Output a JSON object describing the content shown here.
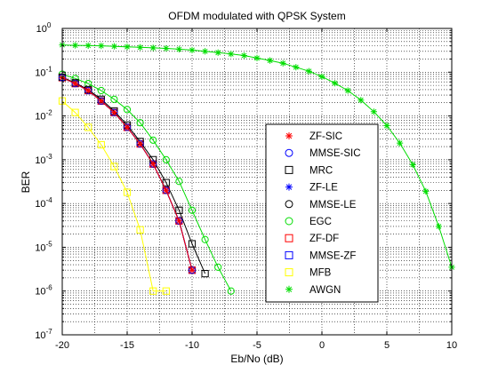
{
  "chart_data": {
    "type": "line",
    "title": "OFDM modulated with QPSK System",
    "xlabel": "Eb/No (dB)",
    "ylabel": "BER",
    "xlim": [
      -20,
      10
    ],
    "ylim": [
      1e-07,
      1
    ],
    "yscale": "log",
    "grid": true,
    "legend_position": "center-right",
    "xticks": [
      -20,
      -15,
      -10,
      -5,
      0,
      5,
      10
    ],
    "xtick_labels": [
      "-20",
      "-15",
      "-10",
      "-5",
      "0",
      "5",
      "10"
    ],
    "yticks_exp": [
      0,
      -1,
      -2,
      -3,
      -4,
      -5,
      -6,
      -7
    ],
    "ytick_base": "10",
    "series": [
      {
        "name": "ZF-SIC",
        "marker": "star",
        "color": "#ff0000",
        "x": [
          -20,
          -19,
          -18,
          -17,
          -16,
          -15,
          -14,
          -13,
          -12,
          -11,
          -10
        ],
        "y": [
          0.075,
          0.055,
          0.038,
          0.022,
          0.012,
          0.0055,
          0.0023,
          0.0008,
          0.0002,
          4e-05,
          3e-06
        ]
      },
      {
        "name": "MMSE-SIC",
        "marker": "circle",
        "color": "#0000ff",
        "x": [
          -20,
          -19,
          -18,
          -17,
          -16,
          -15,
          -14,
          -13,
          -12,
          -11,
          -10
        ],
        "y": [
          0.075,
          0.055,
          0.038,
          0.022,
          0.012,
          0.0055,
          0.0023,
          0.0008,
          0.0002,
          4e-05,
          3e-06
        ]
      },
      {
        "name": "MRC",
        "marker": "square",
        "color": "#000000",
        "x": [
          -20,
          -19,
          -18,
          -17,
          -16,
          -15,
          -14,
          -13,
          -12,
          -11,
          -10,
          -9
        ],
        "y": [
          0.077,
          0.057,
          0.04,
          0.024,
          0.013,
          0.0062,
          0.0026,
          0.001,
          0.0003,
          7e-05,
          1.2e-05,
          2.5e-06
        ]
      },
      {
        "name": "ZF-LE",
        "marker": "star",
        "color": "#0000ff",
        "x": [
          -20,
          -19,
          -18,
          -17,
          -16,
          -15,
          -14,
          -13,
          -12,
          -11,
          -10
        ],
        "y": [
          0.075,
          0.055,
          0.038,
          0.022,
          0.012,
          0.0055,
          0.0023,
          0.0008,
          0.0002,
          4e-05,
          3e-06
        ]
      },
      {
        "name": "MMSE-LE",
        "marker": "circle",
        "color": "#000000",
        "x": [
          -20,
          -19,
          -18,
          -17,
          -16,
          -15,
          -14,
          -13,
          -12,
          -11,
          -10
        ],
        "y": [
          0.075,
          0.055,
          0.038,
          0.022,
          0.012,
          0.0055,
          0.0023,
          0.0008,
          0.0002,
          4e-05,
          3e-06
        ]
      },
      {
        "name": "EGC",
        "marker": "circle",
        "color": "#00dd00",
        "x": [
          -20,
          -19,
          -18,
          -17,
          -16,
          -15,
          -14,
          -13,
          -12,
          -11,
          -10,
          -9,
          -8,
          -7
        ],
        "y": [
          0.09,
          0.072,
          0.055,
          0.038,
          0.024,
          0.014,
          0.007,
          0.0028,
          0.001,
          0.00032,
          7e-05,
          1.5e-05,
          3.5e-06,
          1e-06
        ]
      },
      {
        "name": "ZF-DF",
        "marker": "square",
        "color": "#ff0000",
        "x": [
          -20,
          -19,
          -18,
          -17,
          -16,
          -15,
          -14,
          -13,
          -12,
          -11,
          -10
        ],
        "y": [
          0.075,
          0.055,
          0.038,
          0.022,
          0.012,
          0.0055,
          0.0023,
          0.0008,
          0.0002,
          4e-05,
          3e-06
        ]
      },
      {
        "name": "MMSE-ZF",
        "marker": "square",
        "color": "#0000ff",
        "x": [
          -20,
          -19,
          -18,
          -17,
          -16,
          -15,
          -14,
          -13,
          -12,
          -11,
          -10
        ],
        "y": [
          0.075,
          0.055,
          0.038,
          0.022,
          0.012,
          0.0055,
          0.0023,
          0.0008,
          0.0002,
          4e-05,
          3e-06
        ]
      },
      {
        "name": "MFB",
        "marker": "square",
        "color": "#ffff00",
        "x": [
          -20,
          -19,
          -18,
          -17,
          -16,
          -15,
          -14,
          -13,
          -12
        ],
        "y": [
          0.022,
          0.012,
          0.0055,
          0.0022,
          0.0007,
          0.00018,
          2.5e-05,
          1e-06,
          1e-06
        ]
      },
      {
        "name": "AWGN",
        "marker": "star",
        "color": "#00dd00",
        "x": [
          -20,
          -19,
          -18,
          -17,
          -16,
          -15,
          -14,
          -13,
          -12,
          -11,
          -10,
          -9,
          -8,
          -7,
          -6,
          -5,
          -4,
          -3,
          -2,
          -1,
          0,
          1,
          2,
          3,
          4,
          5,
          6,
          7,
          8,
          9,
          10
        ],
        "y": [
          0.42,
          0.41,
          0.405,
          0.4,
          0.39,
          0.38,
          0.37,
          0.36,
          0.35,
          0.335,
          0.32,
          0.3,
          0.28,
          0.26,
          0.24,
          0.21,
          0.185,
          0.16,
          0.13,
          0.105,
          0.079,
          0.056,
          0.038,
          0.023,
          0.0125,
          0.006,
          0.0024,
          0.00077,
          0.00019,
          3e-05,
          3.5e-06
        ]
      }
    ]
  }
}
